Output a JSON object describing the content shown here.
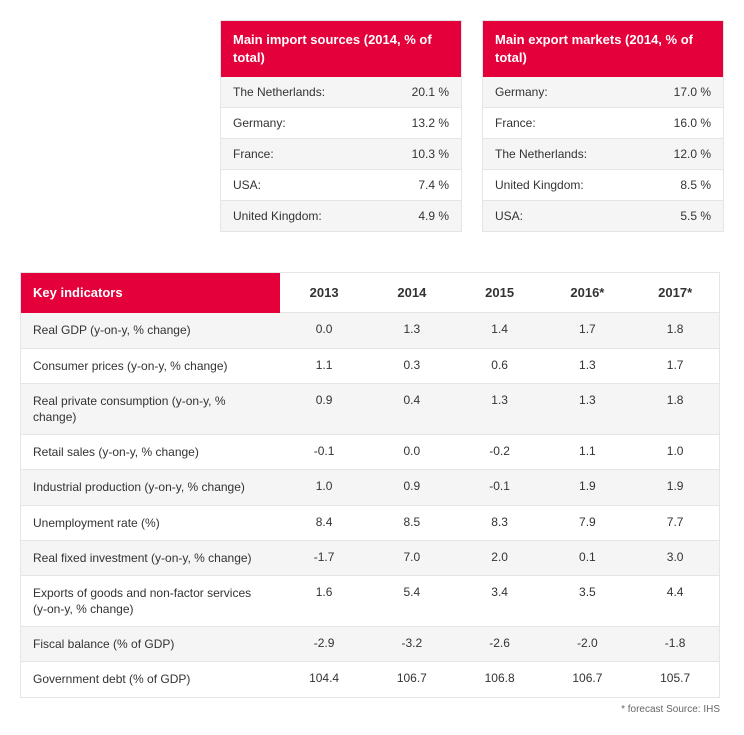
{
  "colors": {
    "header_bg": "#e4003a",
    "header_text": "#ffffff",
    "row_alt_bg": "#f5f5f5",
    "border": "#e5e5e5",
    "text": "#333333",
    "footnote": "#666666"
  },
  "imports": {
    "title": "Main import sources (2014, % of total)",
    "rows": [
      {
        "label": "The Netherlands:",
        "value": "20.1 %"
      },
      {
        "label": "Germany:",
        "value": "13.2 %"
      },
      {
        "label": "France:",
        "value": "10.3 %"
      },
      {
        "label": "USA:",
        "value": "7.4 %"
      },
      {
        "label": "United Kingdom:",
        "value": "4.9 %"
      }
    ]
  },
  "exports": {
    "title": "Main export markets (2014, % of total)",
    "rows": [
      {
        "label": "Germany:",
        "value": "17.0 %"
      },
      {
        "label": "France:",
        "value": "16.0 %"
      },
      {
        "label": "The Netherlands:",
        "value": "12.0 %"
      },
      {
        "label": "United Kingdom:",
        "value": "8.5 %"
      },
      {
        "label": "USA:",
        "value": "5.5 %"
      }
    ]
  },
  "key_indicators": {
    "title": "Key indicators",
    "years": [
      "2013",
      "2014",
      "2015",
      "2016*",
      "2017*"
    ],
    "rows": [
      {
        "label": "Real GDP (y-on-y, % change)",
        "values": [
          "0.0",
          "1.3",
          "1.4",
          "1.7",
          "1.8"
        ]
      },
      {
        "label": "Consumer prices (y-on-y, % change)",
        "values": [
          "1.1",
          "0.3",
          "0.6",
          "1.3",
          "1.7"
        ]
      },
      {
        "label": "Real private consumption (y-on-y, % change)",
        "values": [
          "0.9",
          "0.4",
          "1.3",
          "1.3",
          "1.8"
        ]
      },
      {
        "label": "Retail sales (y-on-y, % change)",
        "values": [
          "-0.1",
          "0.0",
          "-0.2",
          "1.1",
          "1.0"
        ]
      },
      {
        "label": "Industrial production (y-on-y, % change)",
        "values": [
          "1.0",
          "0.9",
          "-0.1",
          "1.9",
          "1.9"
        ]
      },
      {
        "label": "Unemployment rate (%)",
        "values": [
          "8.4",
          "8.5",
          "8.3",
          "7.9",
          "7.7"
        ]
      },
      {
        "label": "Real fixed investment (y-on-y, % change)",
        "values": [
          "-1.7",
          "7.0",
          "2.0",
          "0.1",
          "3.0"
        ]
      },
      {
        "label": "Exports of goods and non-factor services (y-on-y, % change)",
        "values": [
          "1.6",
          "5.4",
          "3.4",
          "3.5",
          "4.4"
        ]
      },
      {
        "label": "Fiscal balance (% of GDP)",
        "values": [
          "-2.9",
          "-3.2",
          "-2.6",
          "-2.0",
          "-1.8"
        ]
      },
      {
        "label": "Government debt (% of GDP)",
        "values": [
          "104.4",
          "106.7",
          "106.8",
          "106.7",
          "105.7"
        ]
      }
    ]
  },
  "footnote": "* forecast    Source: IHS"
}
